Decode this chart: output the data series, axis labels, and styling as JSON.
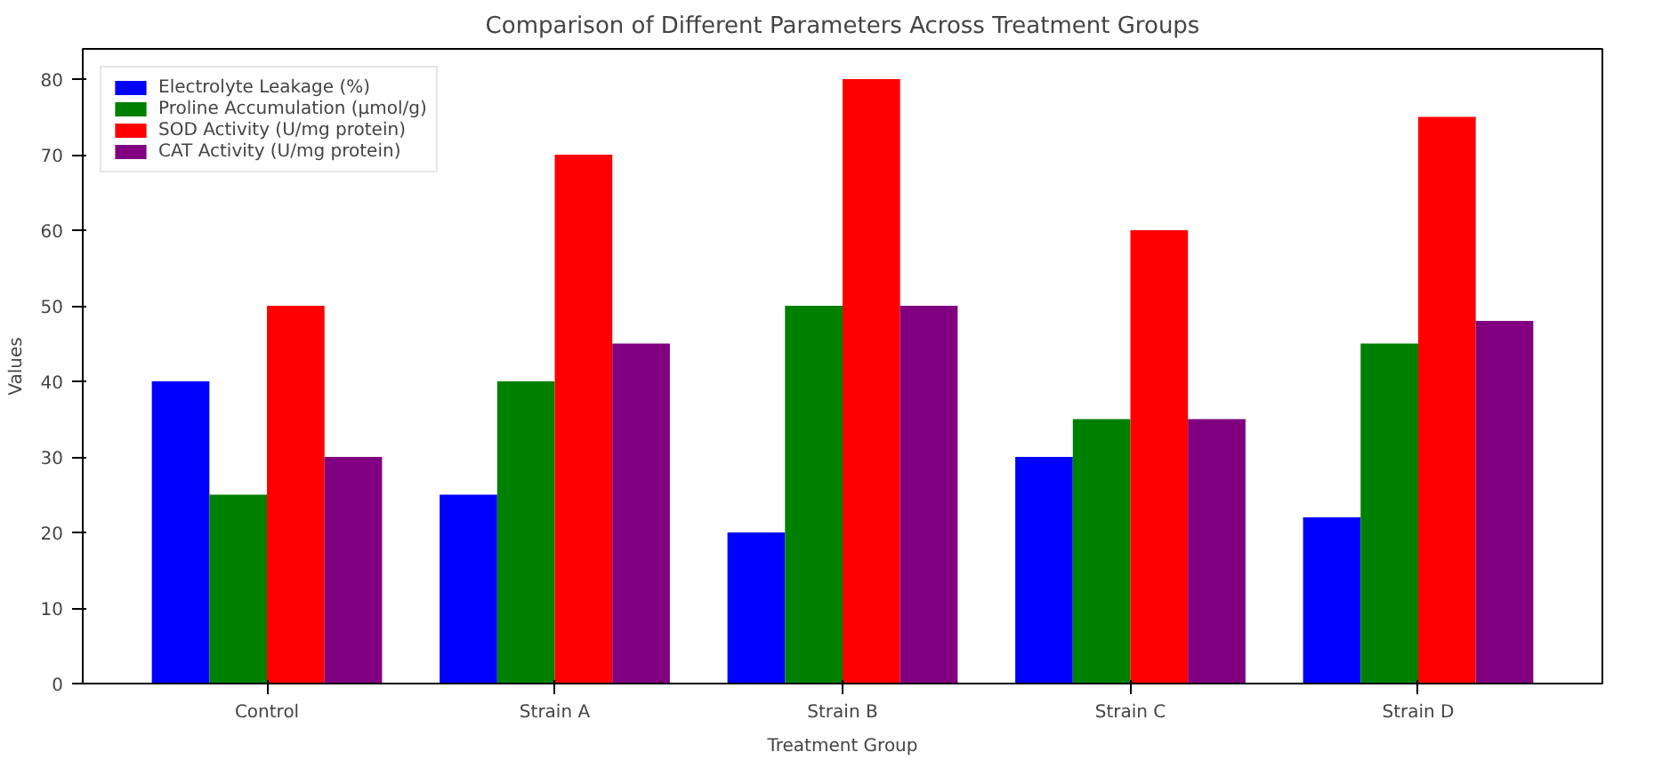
{
  "chart_data": {
    "type": "bar",
    "title": "Comparison of Different Parameters Across Treatment Groups",
    "xlabel": "Treatment Group",
    "ylabel": "Values",
    "categories": [
      "Control",
      "Strain A",
      "Strain B",
      "Strain C",
      "Strain D"
    ],
    "series": [
      {
        "name": "Electrolyte Leakage (%)",
        "color": "#0000ff",
        "values": [
          40,
          25,
          20,
          30,
          22
        ]
      },
      {
        "name": "Proline Accumulation (μmol/g)",
        "color": "#008000",
        "values": [
          25,
          40,
          50,
          35,
          45
        ]
      },
      {
        "name": "SOD Activity (U/mg protein)",
        "color": "#ff0000",
        "values": [
          50,
          70,
          80,
          60,
          75
        ]
      },
      {
        "name": "CAT Activity (U/mg protein)",
        "color": "#800080",
        "values": [
          30,
          45,
          50,
          35,
          48
        ]
      }
    ],
    "ylim": [
      0,
      84
    ],
    "yticks": [
      0,
      10,
      20,
      30,
      40,
      50,
      60,
      70,
      80
    ],
    "grid": false,
    "legend": "top left"
  }
}
